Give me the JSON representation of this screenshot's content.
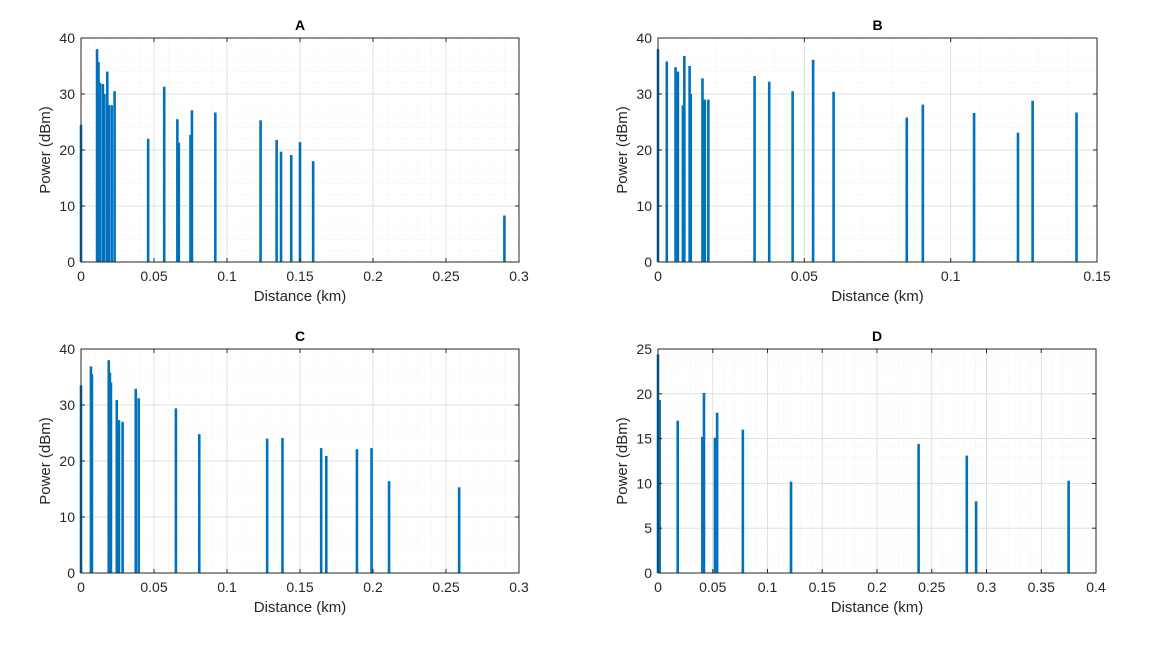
{
  "figure": {
    "bar_color": "#0072BD"
  },
  "chart_data": [
    {
      "id": "A",
      "type": "bar",
      "title": "A",
      "xlabel": "Distance (km)",
      "ylabel": "Power (dBm)",
      "xlim": [
        0,
        0.3
      ],
      "ylim": [
        0,
        40
      ],
      "xticks": [
        0,
        0.05,
        0.1,
        0.15,
        0.2,
        0.25,
        0.3
      ],
      "xtick_labels": [
        "0",
        "0.05",
        "0.1",
        "0.15",
        "0.2",
        "0.25",
        "0.3"
      ],
      "yticks": [
        0,
        10,
        20,
        30,
        40
      ],
      "ytick_labels": [
        "0",
        "10",
        "20",
        "30",
        "40"
      ],
      "grid": true,
      "x": [
        0.0,
        0.011,
        0.012,
        0.013,
        0.015,
        0.016,
        0.018,
        0.019,
        0.021,
        0.023,
        0.046,
        0.057,
        0.066,
        0.067,
        0.075,
        0.076,
        0.092,
        0.123,
        0.134,
        0.137,
        0.144,
        0.15,
        0.159,
        0.29
      ],
      "values": [
        24.5,
        38.0,
        35.7,
        32.0,
        31.8,
        30.0,
        34.0,
        28.0,
        28.0,
        30.5,
        22.0,
        31.3,
        25.5,
        21.3,
        22.7,
        27.1,
        26.7,
        25.3,
        21.8,
        19.7,
        19.1,
        21.4,
        18.0,
        8.3
      ]
    },
    {
      "id": "B",
      "type": "bar",
      "title": "B",
      "xlabel": "Distance (km)",
      "ylabel": "Power (dBm)",
      "xlim": [
        0,
        0.15
      ],
      "ylim": [
        0,
        40
      ],
      "xticks": [
        0,
        0.05,
        0.1,
        0.15
      ],
      "xtick_labels": [
        "0",
        "0.05",
        "0.1",
        "0.15"
      ],
      "yticks": [
        0,
        10,
        20,
        30,
        40
      ],
      "ytick_labels": [
        "0",
        "10",
        "20",
        "30",
        "40"
      ],
      "grid": true,
      "x": [
        0.0,
        0.003,
        0.006,
        0.0068,
        0.0085,
        0.009,
        0.0108,
        0.0112,
        0.0152,
        0.016,
        0.0172,
        0.033,
        0.038,
        0.046,
        0.053,
        0.06,
        0.085,
        0.0905,
        0.108,
        0.123,
        0.128,
        0.143
      ],
      "values": [
        38.0,
        35.8,
        34.8,
        34.0,
        28.0,
        36.8,
        35.0,
        30.0,
        32.8,
        29.0,
        29.0,
        33.2,
        32.2,
        30.5,
        36.1,
        30.4,
        25.8,
        28.1,
        26.6,
        23.1,
        28.8,
        26.7
      ]
    },
    {
      "id": "C",
      "type": "bar",
      "title": "C",
      "xlabel": "Distance (km)",
      "ylabel": "Power (dBm)",
      "xlim": [
        0,
        0.3
      ],
      "ylim": [
        0,
        40
      ],
      "xticks": [
        0,
        0.05,
        0.1,
        0.15,
        0.2,
        0.25,
        0.3
      ],
      "xtick_labels": [
        "0",
        "0.05",
        "0.1",
        "0.15",
        "0.2",
        "0.25",
        "0.3"
      ],
      "yticks": [
        0,
        10,
        20,
        30,
        40
      ],
      "ytick_labels": [
        "0",
        "10",
        "20",
        "30",
        "40"
      ],
      "grid": true,
      "x": [
        0.0,
        0.0068,
        0.0075,
        0.019,
        0.0198,
        0.0205,
        0.0245,
        0.026,
        0.0285,
        0.0375,
        0.0395,
        0.065,
        0.081,
        0.1275,
        0.138,
        0.1645,
        0.168,
        0.189,
        0.199,
        0.211,
        0.259
      ],
      "values": [
        33.5,
        36.9,
        35.5,
        38.0,
        35.8,
        34.0,
        30.9,
        27.3,
        27.0,
        32.9,
        31.2,
        29.4,
        24.8,
        24.0,
        24.1,
        22.3,
        20.9,
        22.1,
        22.3,
        16.4,
        15.3
      ]
    },
    {
      "id": "D",
      "type": "bar",
      "title": "D",
      "xlabel": "Distance (km)",
      "ylabel": "Power (dBm)",
      "xlim": [
        0,
        0.4
      ],
      "ylim": [
        0,
        25
      ],
      "xticks": [
        0,
        0.05,
        0.1,
        0.15,
        0.2,
        0.25,
        0.3,
        0.35,
        0.4
      ],
      "xtick_labels": [
        "0",
        "0.05",
        "0.1",
        "0.15",
        "0.2",
        "0.25",
        "0.3",
        "0.35",
        "0.4"
      ],
      "yticks": [
        0,
        5,
        10,
        15,
        20,
        25
      ],
      "ytick_labels": [
        "0",
        "5",
        "10",
        "15",
        "20",
        "25"
      ],
      "grid": true,
      "x": [
        0.0,
        0.0015,
        0.018,
        0.0405,
        0.042,
        0.052,
        0.054,
        0.0775,
        0.1215,
        0.238,
        0.282,
        0.2905,
        0.375
      ],
      "values": [
        24.4,
        19.3,
        17.0,
        15.2,
        20.1,
        15.1,
        17.9,
        16.0,
        10.2,
        14.4,
        13.1,
        8.0,
        10.3
      ]
    }
  ]
}
